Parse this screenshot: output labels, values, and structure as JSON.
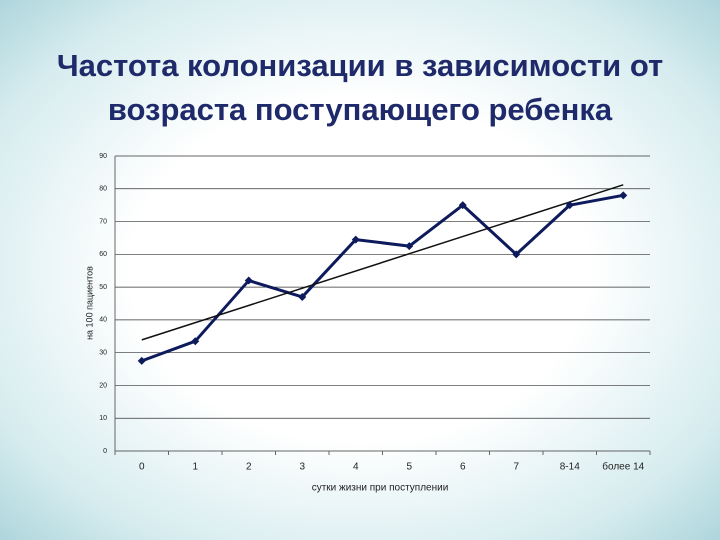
{
  "chart_data": {
    "type": "line",
    "title": [
      "Частота колонизации в зависимости от",
      "возраста поступающего ребенка"
    ],
    "x_label": "сутки жизни при поступлении",
    "y_label": "на 100 пациентов",
    "categories": [
      "0",
      "1",
      "2",
      "3",
      "4",
      "5",
      "6",
      "7",
      "8-14",
      "более 14"
    ],
    "values": [
      27.5,
      33.5,
      52,
      47,
      64.5,
      62.5,
      75,
      60,
      75,
      78
    ],
    "color": "#0d1a5c",
    "trendline": {
      "start": 33.9,
      "end": 81.2,
      "color": "#111111"
    },
    "ylim": [
      0,
      90
    ],
    "yticks": [
      0,
      10,
      20,
      30,
      40,
      50,
      60,
      70,
      80,
      90
    ],
    "grid": true
  }
}
